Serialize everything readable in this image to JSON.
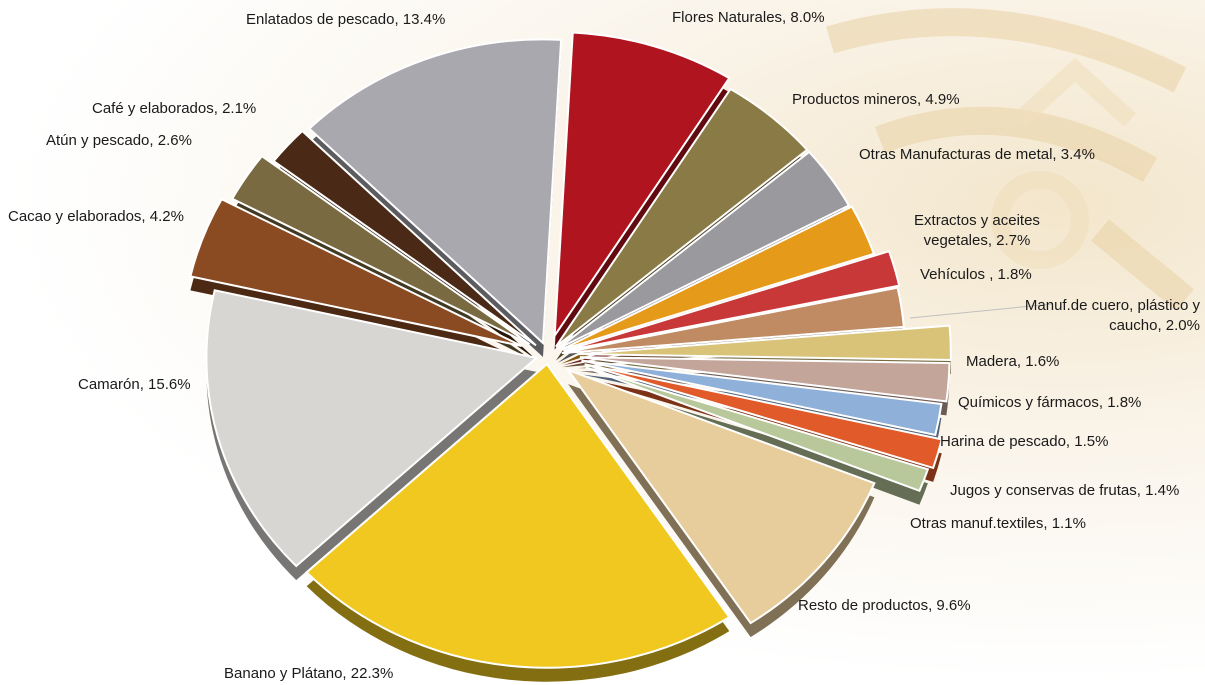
{
  "chart_data": {
    "type": "pie",
    "slices": [
      {
        "label": "Flores Naturales, 8.0%",
        "name": "Flores Naturales",
        "value": 8.0,
        "color": "#b0141e"
      },
      {
        "label": "Productos mineros, 4.9%",
        "name": "Productos mineros",
        "value": 4.9,
        "color": "#8a7a45"
      },
      {
        "label": "Otras Manufacturas de metal, 3.4%",
        "name": "Otras Manufacturas de metal",
        "value": 3.4,
        "color": "#9a9a9e"
      },
      {
        "label": "Extractos y aceites vegetales, 2.7%",
        "name": "Extractos y aceites vegetales",
        "value": 2.7,
        "color": "#e69a1a"
      },
      {
        "label": "Vehículos , 1.8%",
        "name": "Vehículos ",
        "value": 1.8,
        "color": "#c83838"
      },
      {
        "label": "Manuf.de cuero, plástico y caucho, 2.0%",
        "name": "Manuf.de cuero, plástico y caucho",
        "value": 2.0,
        "color": "#c08a62"
      },
      {
        "label": "Madera, 1.6%",
        "name": "Madera",
        "value": 1.6,
        "color": "#d8c378"
      },
      {
        "label": "Químicos y fármacos, 1.8%",
        "name": "Químicos y fármacos",
        "value": 1.8,
        "color": "#c4a59a"
      },
      {
        "label": "Harina de pescado, 1.5%",
        "name": "Harina de pescado",
        "value": 1.5,
        "color": "#8fb0d8"
      },
      {
        "label": "Jugos y conservas de frutas, 1.4%",
        "name": "Jugos y conservas de frutas",
        "value": 1.4,
        "color": "#e05a2a"
      },
      {
        "label": "Otras manuf.textiles, 1.1%",
        "name": "Otras manuf.textiles",
        "value": 1.1,
        "color": "#b8c89a"
      },
      {
        "label": "Resto de productos, 9.6%",
        "name": "Resto de productos",
        "value": 9.6,
        "color": "#e8cd9c"
      },
      {
        "label": "Banano y Plátano, 22.3%",
        "name": "Banano y Plátano",
        "value": 22.3,
        "color": "#f0c820"
      },
      {
        "label": "Camarón, 15.6%",
        "name": "Camarón",
        "value": 15.6,
        "color": "#d8d6d2"
      },
      {
        "label": "Cacao y elaborados, 4.2%",
        "name": "Cacao y elaborados",
        "value": 4.2,
        "color": "#8a4a22"
      },
      {
        "label": "Atún y pescado, 2.6%",
        "name": "Atún y pescado",
        "value": 2.6,
        "color": "#7a6a42"
      },
      {
        "label": "Café y elaborados, 2.1%",
        "name": "Café y elaborados",
        "value": 2.1,
        "color": "#4a2a16"
      },
      {
        "label": "Enlatados de pescado, 13.4%",
        "name": "Enlatados de pescado",
        "value": 13.4,
        "color": "#a8a8ae"
      }
    ]
  }
}
